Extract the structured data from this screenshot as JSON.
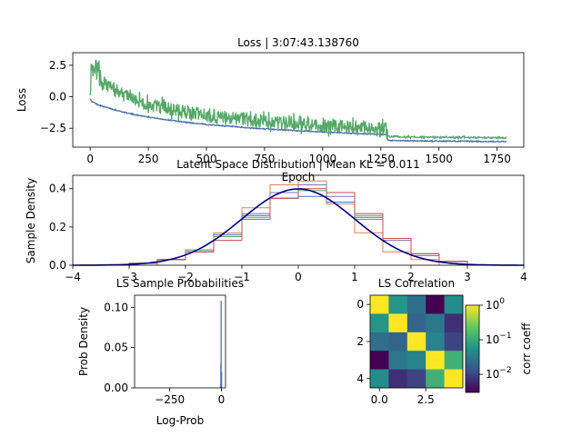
{
  "chart_data": [
    {
      "type": "line",
      "title": "Loss | 3:07:43.138760",
      "xlabel": "Epoch",
      "ylabel": "Loss",
      "xlim": [
        -75,
        1865
      ],
      "ylim": [
        -4.0,
        3.5
      ],
      "xticks": [
        0,
        250,
        500,
        750,
        1000,
        1250,
        1500,
        1750
      ],
      "yticks": [
        -2.5,
        0.0,
        2.5
      ],
      "ytick_labels": [
        "−2.5",
        "0.0",
        "2.5"
      ],
      "series": [
        {
          "color": "#4c72b0",
          "x": [
            0,
            5,
            15,
            30,
            60,
            100,
            150,
            200,
            300,
            400,
            500,
            600,
            700,
            800,
            900,
            1000,
            1100,
            1200,
            1260,
            1275,
            1280,
            1400,
            1500,
            1600,
            1700,
            1790
          ],
          "y": [
            -0.1,
            -0.35,
            -0.45,
            -0.6,
            -0.8,
            -1.0,
            -1.25,
            -1.45,
            -1.75,
            -2.0,
            -2.2,
            -2.35,
            -2.5,
            -2.6,
            -2.7,
            -2.8,
            -2.88,
            -2.95,
            -3.0,
            -3.0,
            -3.48,
            -3.5,
            -3.52,
            -3.53,
            -3.55,
            -3.56
          ]
        },
        {
          "color": "#55a868",
          "x": [
            0,
            5,
            10,
            20,
            40,
            70,
            100,
            150,
            200,
            300,
            400,
            500,
            600,
            700,
            800,
            900,
            1000,
            1100,
            1200,
            1270,
            1280,
            1400,
            1500,
            1600,
            1700,
            1790
          ],
          "y": [
            1.0,
            2.2,
            3.0,
            2.5,
            1.5,
            1.0,
            0.5,
            0.1,
            -0.3,
            -0.8,
            -1.2,
            -1.5,
            -1.7,
            -1.9,
            -2.0,
            -2.1,
            -2.3,
            -2.4,
            -2.5,
            -2.6,
            -3.15,
            -3.2,
            -3.22,
            -3.23,
            -3.24,
            -3.25
          ]
        }
      ]
    },
    {
      "type": "line",
      "title": "Latent Space Distribution | Mean KL = 0.011",
      "ylabel": "Sample Density",
      "xlim": [
        -4,
        4
      ],
      "ylim": [
        0,
        0.47
      ],
      "xticks": [
        -4,
        -3,
        -2,
        -1,
        0,
        1,
        2,
        3,
        4
      ],
      "xtick_labels": [
        "−4",
        "−3",
        "−2",
        "−1",
        "0",
        "1",
        "2",
        "3",
        "4"
      ],
      "yticks": [
        0.0,
        0.2,
        0.4
      ],
      "ytick_labels": [
        "0.0",
        "0.2",
        "0.4"
      ],
      "reference_curve": {
        "distribution": "standard normal",
        "color": "#00008b"
      },
      "histograms": [
        {
          "color": "#dd8452",
          "bin_edges": [
            -2.5,
            -2.0,
            -1.5,
            -1.0,
            -0.5,
            0.0,
            0.5,
            1.0,
            1.5,
            2.0,
            2.5
          ],
          "densities": [
            0.03,
            0.08,
            0.17,
            0.3,
            0.42,
            0.44,
            0.32,
            0.17,
            0.07,
            0.03
          ]
        },
        {
          "color": "#8172b3",
          "bin_edges": [
            -3,
            -2.5,
            -2,
            -1.5,
            -1,
            -0.5,
            0,
            0.5,
            1,
            1.5,
            2,
            2.5,
            3
          ],
          "densities": [
            0.01,
            0.03,
            0.07,
            0.15,
            0.27,
            0.38,
            0.42,
            0.36,
            0.24,
            0.13,
            0.05,
            0.02
          ]
        },
        {
          "color": "#4c72b0",
          "bin_edges": [
            -3,
            -2.5,
            -2,
            -1.5,
            -1,
            -0.5,
            0,
            0.5,
            1,
            1.5,
            2,
            2.5,
            3
          ],
          "densities": [
            0.01,
            0.03,
            0.07,
            0.16,
            0.26,
            0.35,
            0.36,
            0.33,
            0.25,
            0.14,
            0.06,
            0.02
          ]
        },
        {
          "color": "#55a868",
          "bin_edges": [
            -3,
            -2.5,
            -2,
            -1.5,
            -1,
            -0.5,
            0,
            0.5,
            1,
            1.5,
            2,
            2.5,
            3
          ],
          "densities": [
            0.01,
            0.03,
            0.08,
            0.15,
            0.25,
            0.35,
            0.39,
            0.38,
            0.26,
            0.14,
            0.06,
            0.02
          ]
        },
        {
          "color": "#c44e52",
          "bin_edges": [
            -3,
            -2.5,
            -2,
            -1.5,
            -1,
            -0.5,
            0,
            0.5,
            1,
            1.5,
            2,
            2.5,
            3
          ],
          "densities": [
            0.01,
            0.03,
            0.07,
            0.13,
            0.24,
            0.35,
            0.4,
            0.38,
            0.27,
            0.14,
            0.06,
            0.02
          ]
        }
      ]
    },
    {
      "type": "bar",
      "title": "LS Sample Probabilities",
      "xlabel": "Log-Prob",
      "ylabel": "Prob Density",
      "xlim": [
        -420,
        20
      ],
      "ylim": [
        0,
        0.115
      ],
      "xticks": [
        -250,
        0
      ],
      "xtick_labels": [
        "−250",
        "0"
      ],
      "yticks": [
        0.0,
        0.05,
        0.1
      ],
      "ytick_labels": [
        "0.00",
        "0.05",
        "0.10"
      ],
      "bars": [
        {
          "x": -4.5,
          "height": 0.005,
          "color": "#9ab0d8"
        },
        {
          "x": -3.0,
          "height": 0.03,
          "color": "#4c72b0"
        },
        {
          "x": -1.5,
          "height": 0.108,
          "color": "#4c72b0"
        },
        {
          "x": 0.5,
          "height": 0.02,
          "color": "#4c72b0"
        }
      ]
    },
    {
      "type": "heatmap",
      "title": "LS Correlation",
      "xticks": [
        0.0,
        2.5
      ],
      "xtick_labels": [
        "0.0",
        "2.5"
      ],
      "yticks": [
        0,
        2,
        4
      ],
      "ytick_labels": [
        "0",
        "2",
        "4"
      ],
      "matrix": [
        [
          1.0,
          0.06,
          0.025,
          0.003,
          0.05
        ],
        [
          0.06,
          1.0,
          0.02,
          0.03,
          0.007
        ],
        [
          0.025,
          0.02,
          1.0,
          0.04,
          0.01
        ],
        [
          0.003,
          0.03,
          0.04,
          1.0,
          0.12
        ],
        [
          0.05,
          0.007,
          0.01,
          0.12,
          1.0
        ]
      ],
      "colorbar": {
        "label": "corr coeff",
        "scale": "log",
        "range": [
          0.003,
          1.0
        ],
        "ticks": [
          {
            "value": 1.0,
            "base": "10",
            "exp": "0"
          },
          {
            "value": 0.1,
            "base": "10",
            "exp": "−1"
          },
          {
            "value": 0.01,
            "base": "10",
            "exp": "−2"
          }
        ]
      }
    }
  ]
}
